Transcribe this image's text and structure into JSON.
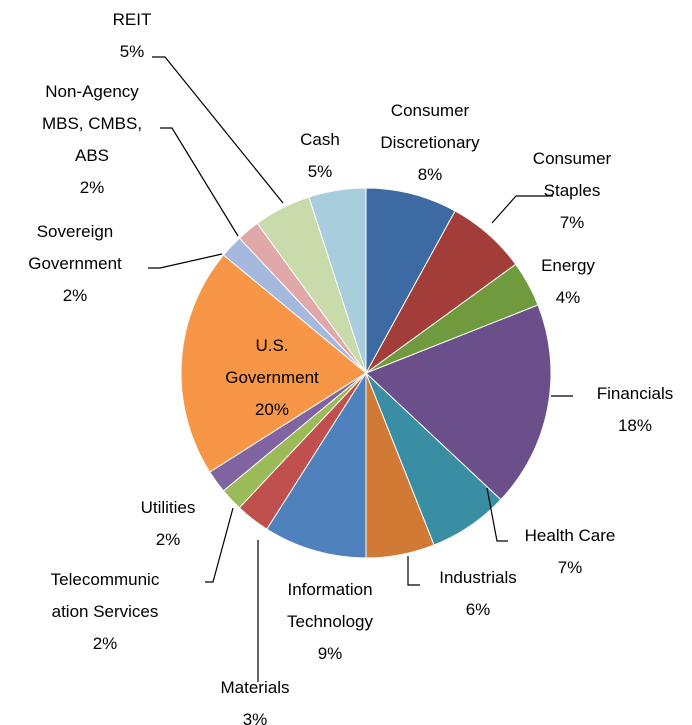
{
  "chart_data": {
    "type": "pie",
    "categories": [
      "Consumer\nDiscretionary",
      "Consumer\nStaples",
      "Energy",
      "Financials",
      "Health Care",
      "Industrials",
      "Information\nTechnology",
      "Materials",
      "Telecommunic\nation Services",
      "Utilities",
      "U.S.\nGovernment",
      "Sovereign\nGovernment",
      "Non-Agency\nMBS, CMBS,\nABS",
      "REIT",
      "Cash"
    ],
    "values": [
      8,
      7,
      4,
      18,
      7,
      6,
      9,
      3,
      2,
      2,
      20,
      2,
      2,
      5,
      5
    ],
    "value_labels": [
      "8%",
      "7%",
      "4%",
      "18%",
      "7%",
      "6%",
      "9%",
      "3%",
      "2%",
      "2%",
      "20%",
      "2%",
      "2%",
      "5%",
      "5%"
    ],
    "colors": [
      "#3d6aa3",
      "#a33d3a",
      "#6f9a3d",
      "#6a4f8a",
      "#398ea3",
      "#d17a35",
      "#4f81bd",
      "#c0504d",
      "#9bbb59",
      "#8064a2",
      "#f79646",
      "#a5b8dd",
      "#e0a8a8",
      "#c9dbaa",
      "#a8cddc"
    ]
  }
}
